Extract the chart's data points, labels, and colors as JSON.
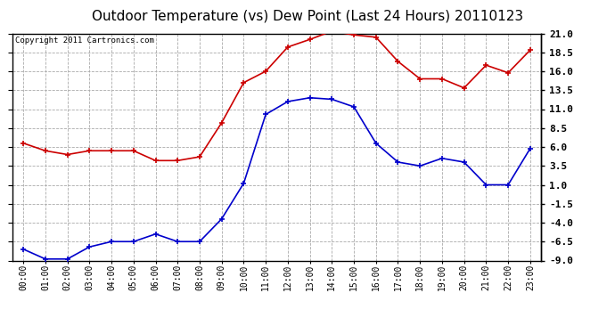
{
  "title": "Outdoor Temperature (vs) Dew Point (Last 24 Hours) 20110123",
  "copyright": "Copyright 2011 Cartronics.com",
  "x_labels": [
    "00:00",
    "01:00",
    "02:00",
    "03:00",
    "04:00",
    "05:00",
    "06:00",
    "07:00",
    "08:00",
    "09:00",
    "10:00",
    "11:00",
    "12:00",
    "13:00",
    "14:00",
    "15:00",
    "16:00",
    "17:00",
    "18:00",
    "19:00",
    "20:00",
    "21:00",
    "22:00",
    "23:00"
  ],
  "temp_data": [
    6.5,
    5.5,
    5.0,
    5.5,
    5.5,
    5.5,
    4.2,
    4.2,
    4.7,
    9.2,
    14.5,
    16.0,
    19.2,
    20.2,
    21.3,
    20.8,
    20.5,
    17.3,
    15.0,
    15.0,
    13.8,
    16.8,
    15.8,
    18.8
  ],
  "dew_data": [
    -7.5,
    -8.8,
    -8.8,
    -7.2,
    -6.5,
    -6.5,
    -5.5,
    -6.5,
    -6.5,
    -3.5,
    1.2,
    10.3,
    12.0,
    12.5,
    12.3,
    11.3,
    6.5,
    4.0,
    3.5,
    4.5,
    4.0,
    1.0,
    1.0,
    5.8
  ],
  "temp_color": "#cc0000",
  "dew_color": "#0000cc",
  "bg_color": "#ffffff",
  "grid_color": "#aaaaaa",
  "ylim": [
    -9.0,
    21.0
  ],
  "yticks": [
    21.0,
    18.5,
    16.0,
    13.5,
    11.0,
    8.5,
    6.0,
    3.5,
    1.0,
    -1.5,
    -4.0,
    -6.5,
    -9.0
  ],
  "title_fontsize": 11,
  "tick_fontsize": 7,
  "copyright_fontsize": 6.5
}
